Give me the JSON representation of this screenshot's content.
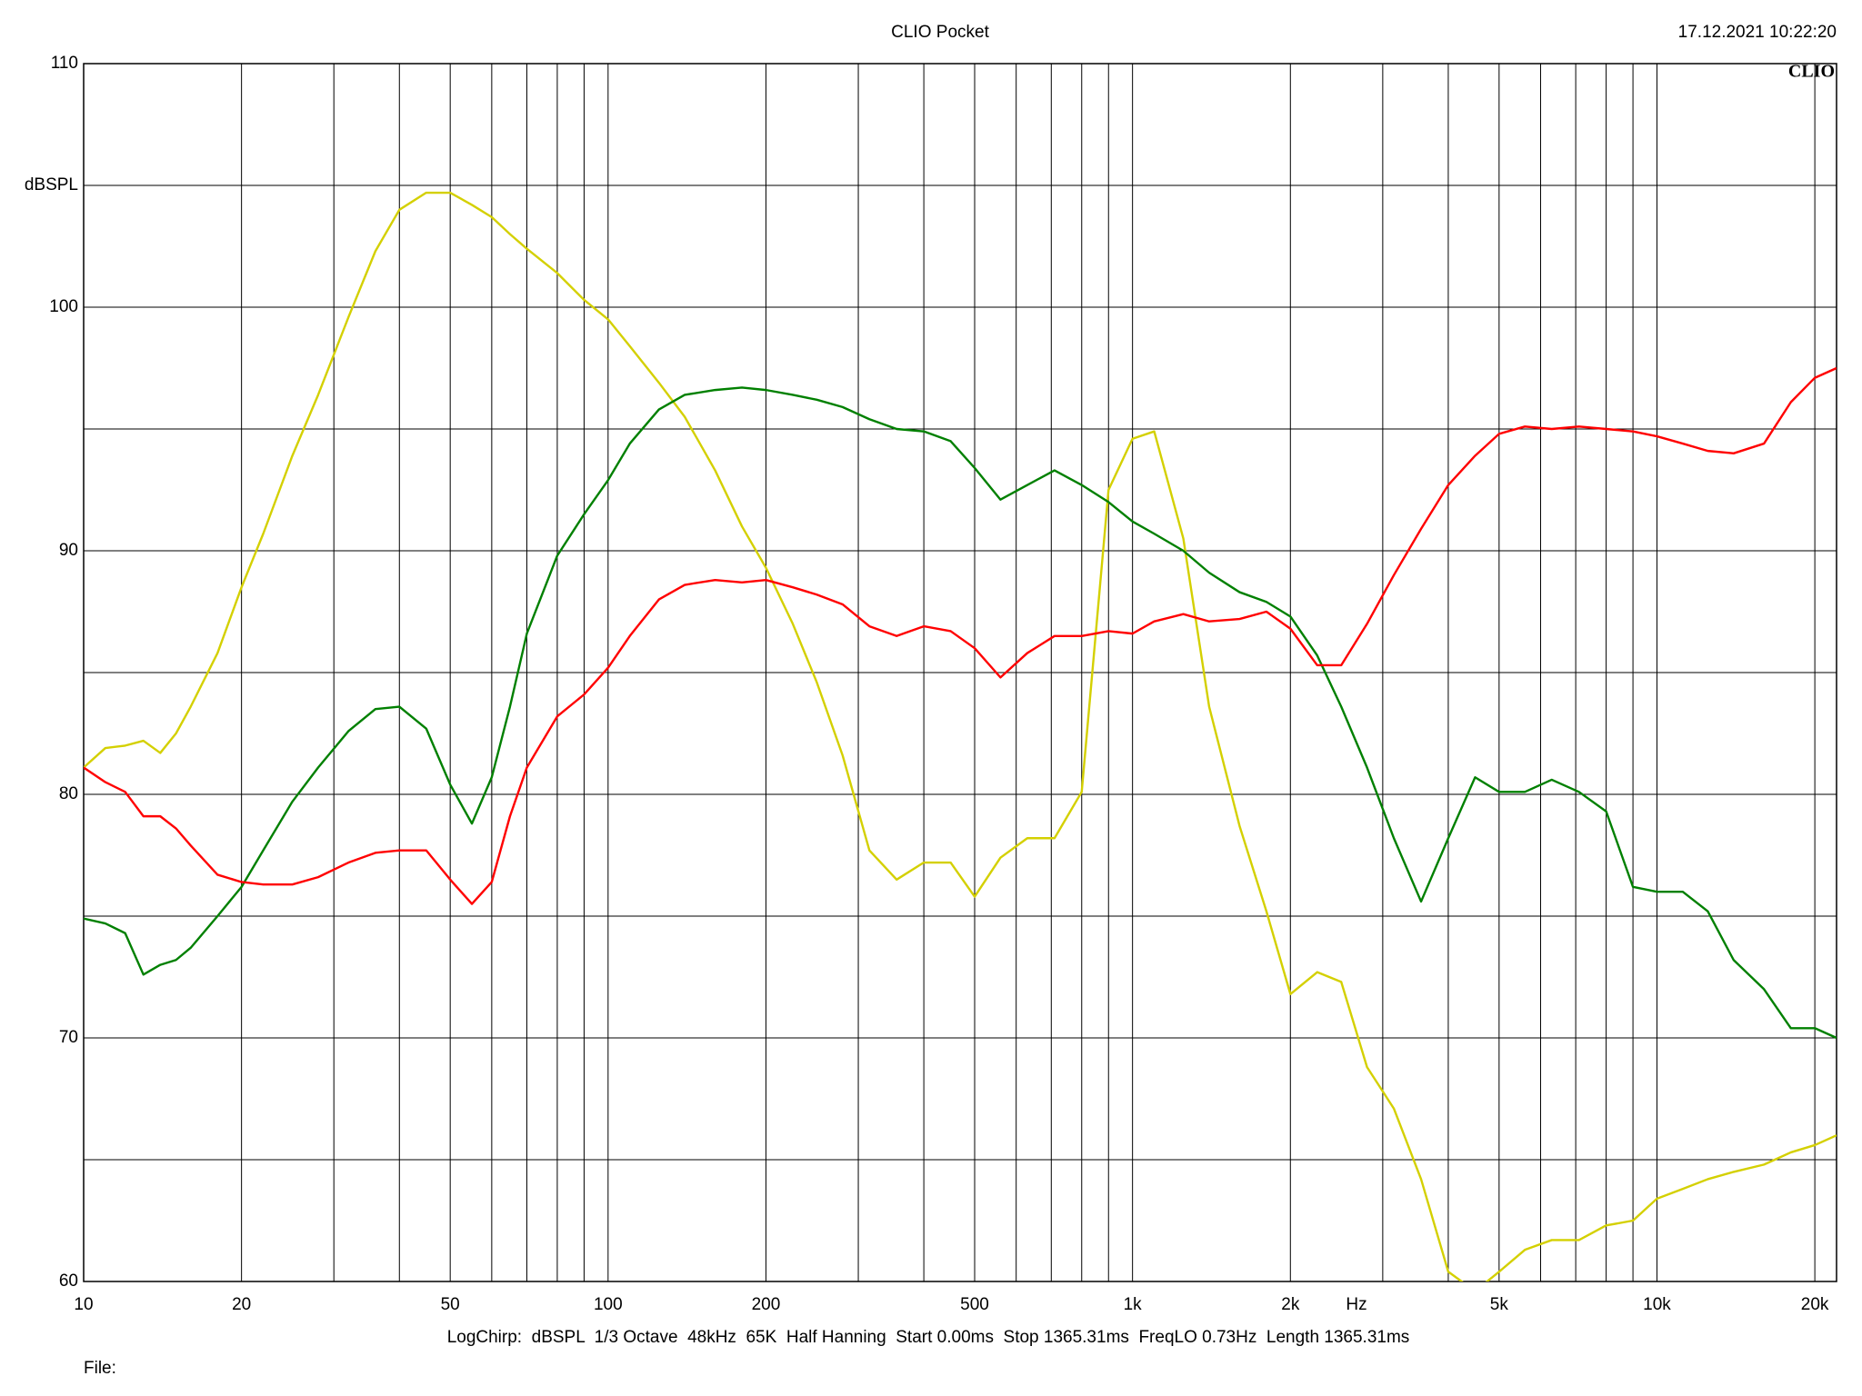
{
  "chart_data": {
    "type": "line",
    "title": "CLIO Pocket",
    "timestamp": "17.12.2021 10:22:20",
    "logo": "CLIO",
    "y_label": "dBSPL",
    "x_label": "Hz",
    "footer": "LogChirp:  dBSPL  1/3 Octave  48kHz  65K  Half Hanning  Start 0.00ms  Stop 1365.31ms  FreqLO 0.73Hz  Length 1365.31ms",
    "file_label": "File:",
    "xscale": "log",
    "grid": true,
    "xlim": [
      10,
      22000
    ],
    "ylim": [
      60,
      110
    ],
    "xticks": [
      10,
      20,
      50,
      100,
      200,
      500,
      {
        "value": 1000,
        "label": "1k"
      },
      {
        "value": 2000,
        "label": "2k"
      },
      {
        "value": 5000,
        "label": "5k"
      },
      {
        "value": 10000,
        "label": "10k"
      },
      {
        "value": 20000,
        "label": "20k"
      }
    ],
    "x_minor_ticks": [
      30,
      40,
      60,
      70,
      80,
      90,
      300,
      400,
      600,
      700,
      800,
      900,
      3000,
      4000,
      6000,
      7000,
      8000,
      9000
    ],
    "yticks": [
      60,
      70,
      80,
      90,
      100,
      110
    ],
    "y_minor_ticks": [
      65,
      75,
      85,
      95,
      105
    ],
    "x": [
      10,
      11,
      12,
      13,
      14,
      15,
      16,
      18,
      20,
      22,
      25,
      28,
      32,
      36,
      40,
      45,
      50,
      55,
      60,
      65,
      70,
      80,
      90,
      100,
      110,
      125,
      140,
      160,
      180,
      200,
      225,
      250,
      280,
      315,
      355,
      400,
      450,
      500,
      560,
      630,
      710,
      800,
      900,
      1000,
      1100,
      1250,
      1400,
      1600,
      1800,
      2000,
      2250,
      2500,
      2800,
      3150,
      3550,
      4000,
      4500,
      5000,
      5600,
      6300,
      7100,
      8000,
      9000,
      10000,
      11200,
      12500,
      14000,
      16000,
      18000,
      20000,
      22000
    ],
    "series": [
      {
        "color": "#d4d000",
        "values": [
          81.1,
          81.9,
          82.0,
          82.2,
          81.7,
          82.5,
          83.6,
          85.8,
          88.5,
          90.7,
          93.9,
          96.4,
          99.6,
          102.3,
          104.0,
          104.7,
          104.7,
          104.2,
          103.7,
          103.0,
          102.4,
          101.4,
          100.3,
          99.5,
          98.4,
          96.9,
          95.5,
          93.3,
          91.0,
          89.3,
          87.0,
          84.6,
          81.6,
          77.7,
          76.5,
          77.2,
          77.2,
          75.8,
          77.4,
          78.2,
          78.2,
          80.1,
          92.5,
          94.6,
          94.9,
          90.5,
          83.6,
          78.7,
          75.2,
          71.8,
          72.7,
          72.3,
          68.8,
          67.1,
          64.2,
          60.4,
          59.6,
          60.4,
          61.3,
          61.7,
          61.7,
          62.3,
          62.5,
          63.4,
          63.8,
          64.2,
          64.5,
          64.8,
          65.3,
          65.6,
          66.0
        ]
      },
      {
        "color": "#008000",
        "values": [
          74.9,
          74.7,
          74.3,
          72.6,
          73.0,
          73.2,
          73.7,
          75.0,
          76.2,
          77.7,
          79.7,
          81.1,
          82.6,
          83.5,
          83.6,
          82.7,
          80.4,
          78.8,
          80.7,
          83.6,
          86.6,
          89.8,
          91.5,
          92.9,
          94.4,
          95.8,
          96.4,
          96.6,
          96.7,
          96.6,
          96.4,
          96.2,
          95.9,
          95.4,
          95.0,
          94.9,
          94.5,
          93.4,
          92.1,
          92.7,
          93.3,
          92.7,
          92.0,
          91.2,
          90.7,
          90.0,
          89.1,
          88.3,
          87.9,
          87.3,
          85.7,
          83.6,
          81.1,
          78.2,
          75.6,
          78.2,
          80.7,
          80.1,
          80.1,
          80.6,
          80.1,
          79.3,
          76.2,
          76.0,
          76.0,
          75.2,
          73.2,
          72.0,
          70.4,
          70.4,
          70.0
        ]
      },
      {
        "color": "#ff0000",
        "values": [
          81.1,
          80.5,
          80.1,
          79.1,
          79.1,
          78.6,
          77.9,
          76.7,
          76.4,
          76.3,
          76.3,
          76.6,
          77.2,
          77.6,
          77.7,
          77.7,
          76.5,
          75.5,
          76.4,
          79.1,
          81.1,
          83.2,
          84.1,
          85.2,
          86.5,
          88.0,
          88.6,
          88.8,
          88.7,
          88.8,
          88.5,
          88.2,
          87.8,
          86.9,
          86.5,
          86.9,
          86.7,
          86.0,
          84.8,
          85.8,
          86.5,
          86.5,
          86.7,
          86.6,
          87.1,
          87.4,
          87.1,
          87.2,
          87.5,
          86.8,
          85.3,
          85.3,
          87.0,
          89.0,
          90.9,
          92.7,
          93.9,
          94.8,
          95.1,
          95.0,
          95.1,
          95.0,
          94.9,
          94.7,
          94.4,
          94.1,
          94.0,
          94.4,
          96.1,
          97.1,
          97.5
        ]
      }
    ]
  }
}
